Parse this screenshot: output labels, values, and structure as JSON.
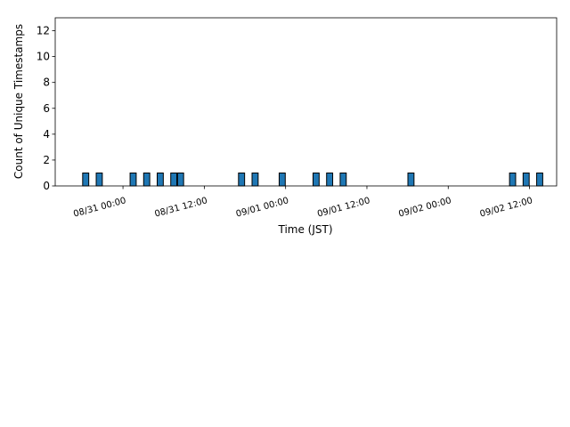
{
  "chart_data": {
    "type": "histogram",
    "xlabel": "Time (JST)",
    "ylabel": "Count of Unique Timestamps",
    "color": "#1f77b4",
    "bins": [
      -6,
      -5,
      -4,
      -3,
      -2,
      -1,
      0,
      1,
      2,
      3,
      4,
      5,
      6,
      7,
      8,
      9,
      10,
      11,
      12,
      13,
      14,
      15,
      16,
      17,
      18,
      19,
      20,
      21,
      22,
      23,
      24,
      25,
      26,
      27,
      28,
      29,
      30,
      31,
      32,
      33,
      34,
      35,
      36,
      37,
      38,
      39,
      40,
      41,
      42,
      43,
      44,
      45,
      46,
      47,
      48,
      49,
      50,
      51,
      52,
      53,
      54,
      55,
      56,
      57,
      58,
      59,
      60,
      61,
      62
    ],
    "values": [
      1,
      0,
      1,
      0,
      0,
      0,
      0,
      1,
      0,
      1,
      0,
      1,
      0,
      1,
      1,
      0,
      0,
      0,
      0,
      0,
      0,
      0,
      0,
      1,
      0,
      1,
      0,
      0,
      0,
      1,
      0,
      0,
      0,
      0,
      1,
      0,
      1,
      0,
      1,
      0,
      0,
      0,
      0,
      0,
      0,
      0,
      0,
      0,
      1,
      0,
      0,
      0,
      0,
      0,
      0,
      0,
      0,
      0,
      0,
      0,
      0,
      0,
      0,
      1,
      0,
      1,
      0,
      1
    ],
    "xlim": [
      -10,
      64
    ],
    "xticks": [
      {
        "value": 0,
        "label": "08/31 00:00"
      },
      {
        "value": 12,
        "label": "08/31 12:00"
      },
      {
        "value": 24,
        "label": "09/01 00:00"
      },
      {
        "value": 36,
        "label": "09/01 12:00"
      },
      {
        "value": 48,
        "label": "09/02 00:00"
      },
      {
        "value": 60,
        "label": "09/02 12:00"
      }
    ],
    "ylim": [
      0,
      13
    ],
    "yticks": [
      0,
      2,
      4,
      6,
      8,
      10,
      12
    ]
  }
}
